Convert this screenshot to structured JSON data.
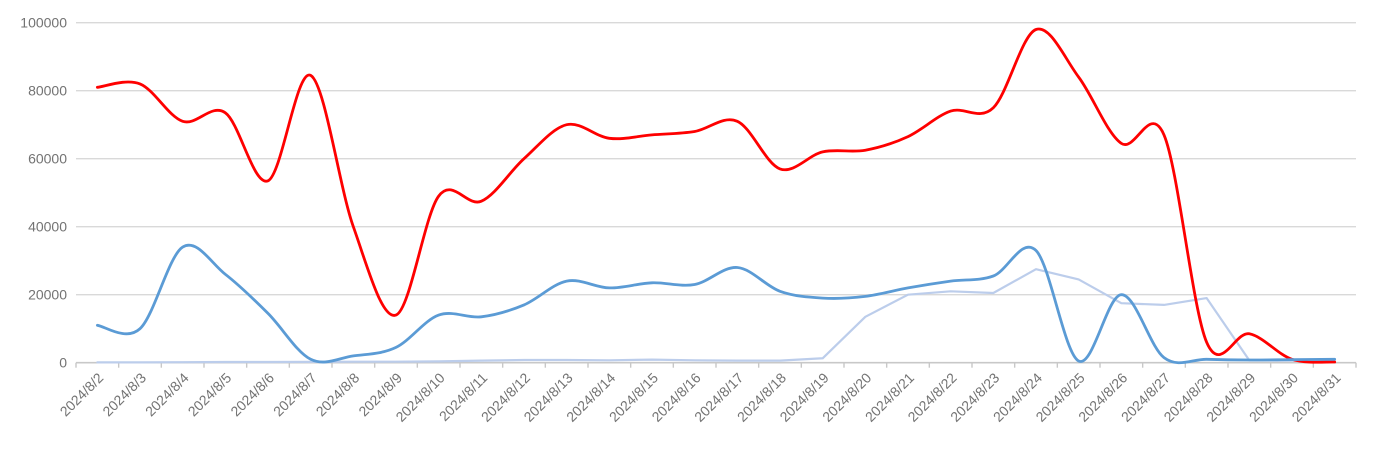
{
  "chart_data": {
    "type": "line",
    "title": "",
    "legend": "none",
    "grid": true,
    "x_labels": [
      "2024/8/2",
      "2024/8/3",
      "2024/8/4",
      "2024/8/5",
      "2024/8/6",
      "2024/8/7",
      "2024/8/8",
      "2024/8/9",
      "2024/8/10",
      "2024/8/11",
      "2024/8/12",
      "2024/8/13",
      "2024/8/14",
      "2024/8/15",
      "2024/8/16",
      "2024/8/17",
      "2024/8/18",
      "2024/8/19",
      "2024/8/20",
      "2024/8/21",
      "2024/8/22",
      "2024/8/23",
      "2024/8/24",
      "2024/8/25",
      "2024/8/26",
      "2024/8/27",
      "2024/8/28",
      "2024/8/29",
      "2024/8/30",
      "2024/8/31"
    ],
    "y_ticks": [
      0,
      20000,
      40000,
      60000,
      80000,
      100000
    ],
    "ylim": [
      0,
      100000
    ],
    "series": [
      {
        "name": "series-lightblue",
        "color": "#BCCDEB",
        "stroke_width": 2.2,
        "smooth": false,
        "values": [
          100,
          100,
          150,
          200,
          200,
          250,
          300,
          300,
          400,
          600,
          800,
          800,
          700,
          900,
          700,
          600,
          600,
          1300,
          13500,
          20000,
          21000,
          20500,
          27500,
          24500,
          17500,
          17000,
          19000,
          700,
          600,
          700
        ]
      },
      {
        "name": "series-red",
        "color": "#FE0000",
        "stroke_width": 2.8,
        "smooth": true,
        "values": [
          81000,
          82000,
          71000,
          73500,
          53500,
          84500,
          40000,
          14000,
          49000,
          47500,
          60000,
          70000,
          66000,
          67000,
          68000,
          71000,
          57000,
          62000,
          62500,
          66500,
          74000,
          75000,
          98000,
          84000,
          64500,
          67000,
          6000,
          8500,
          1000,
          200
        ]
      },
      {
        "name": "series-blue",
        "color": "#5B9BD5",
        "stroke_width": 2.8,
        "smooth": true,
        "values": [
          11000,
          10000,
          34000,
          26000,
          14500,
          1000,
          2000,
          4500,
          14000,
          13500,
          17000,
          24000,
          22000,
          23500,
          23000,
          28000,
          21000,
          19000,
          19500,
          22000,
          24000,
          25500,
          33000,
          500,
          20000,
          1500,
          1000,
          800,
          900,
          1000
        ]
      }
    ]
  },
  "style": {
    "grid_color": "#D9D9D9",
    "axis_color": "#C8C8C8",
    "tick_color": "#C8C8C8",
    "label_color": "#737373",
    "label_font_size": 14,
    "x_label_rotation": -45
  }
}
